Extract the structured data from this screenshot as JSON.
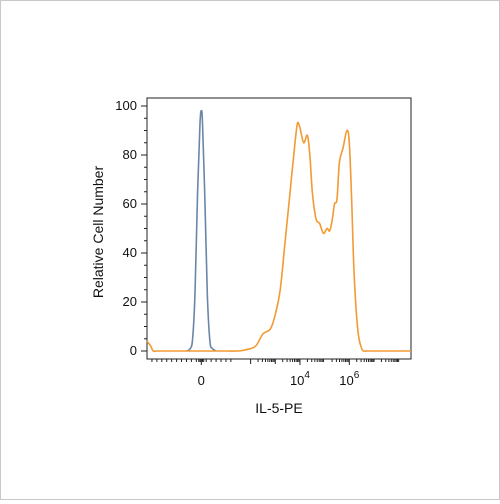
{
  "chart_data": {
    "type": "line",
    "xlabel": "IL-5-PE",
    "ylabel": "Relative Cell Number",
    "ylim": [
      0,
      100
    ],
    "y_ticks": [
      "0",
      "20",
      "40",
      "60",
      "80",
      "100"
    ],
    "x_ticks": [
      {
        "base": "0",
        "exp": ""
      },
      {
        "base": "10",
        "exp": "4"
      },
      {
        "base": "10",
        "exp": "6"
      }
    ],
    "grid": false,
    "legend": "none",
    "series": [
      {
        "color": "#6b86a6",
        "x": [
          -0.6,
          -0.45,
          -0.35,
          -0.25,
          -0.15,
          -0.05,
          0.0,
          0.05,
          0.15,
          0.25,
          0.35,
          0.45,
          0.6
        ],
        "y": [
          0,
          1,
          5,
          25,
          65,
          93,
          98,
          93,
          60,
          22,
          4,
          1,
          0
        ]
      },
      {
        "color": "#f29a33",
        "x": [
          -2.2,
          -2.05,
          -1.95,
          -1.8,
          -1.5,
          -1.0,
          -0.5,
          0.0,
          0.5,
          1.0,
          1.5,
          1.8,
          2.2,
          2.5,
          2.8,
          3.0,
          3.2,
          3.4,
          3.6,
          3.8,
          3.9,
          4.0,
          4.15,
          4.3,
          4.4,
          4.5,
          4.65,
          4.8,
          4.95,
          5.1,
          5.2,
          5.3,
          5.4,
          5.5,
          5.6,
          5.75,
          5.9,
          6.0,
          6.1,
          6.2,
          6.35,
          6.5,
          6.6,
          6.75,
          6.9,
          7.0,
          7.3,
          7.8,
          8.5
        ],
        "y": [
          4,
          2,
          0,
          0,
          0,
          0,
          0,
          0,
          0,
          0,
          0,
          0.5,
          2,
          7,
          9,
          15,
          25,
          45,
          65,
          85,
          93,
          91,
          85,
          88,
          80,
          65,
          54,
          52,
          48,
          50,
          49,
          53,
          60,
          62,
          77,
          83,
          90,
          85,
          60,
          30,
          8,
          1,
          0,
          0,
          0,
          0,
          0,
          0,
          0
        ]
      }
    ]
  }
}
